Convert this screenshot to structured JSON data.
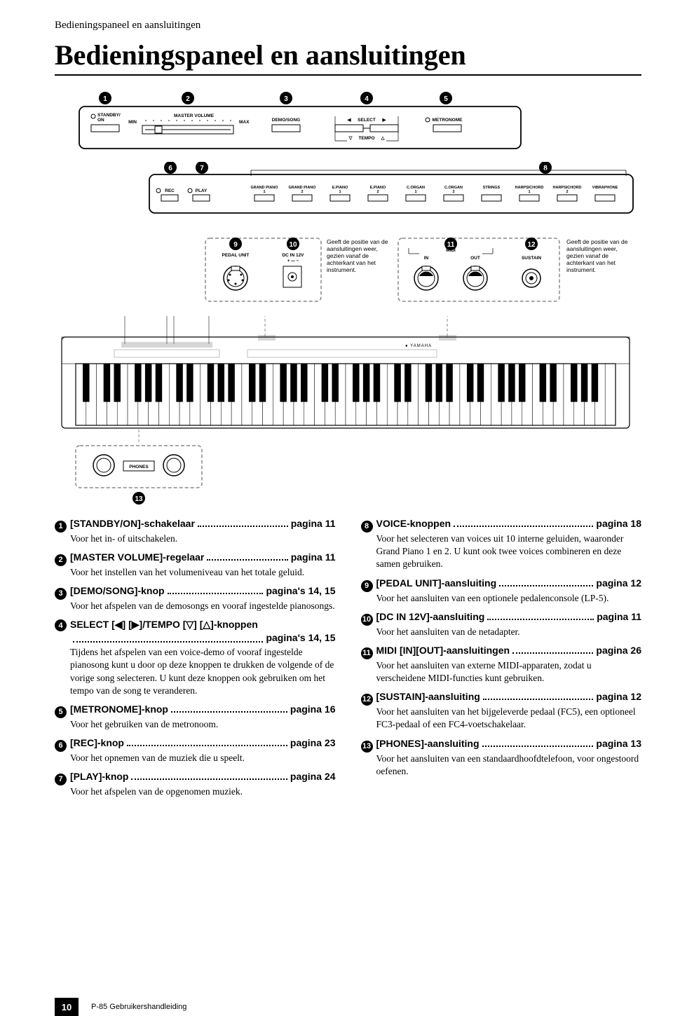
{
  "breadcrumb": "Bedieningspaneel en aansluitingen",
  "title": "Bedieningspaneel en aansluitingen",
  "top_panel": {
    "numbers": [
      "1",
      "2",
      "3",
      "4",
      "5"
    ],
    "items": [
      {
        "label_top": "STANDBY/",
        "label_bot": "ON",
        "led": true
      },
      {
        "slider": true,
        "left": "MIN",
        "right": "MAX",
        "title": "MASTER VOLUME"
      },
      {
        "label": "DEMO/SONG"
      },
      {
        "label": "SELECT",
        "arrows_lr": true,
        "sub_label": "TEMPO",
        "arrows_ud": true
      },
      {
        "label": "METRONOME",
        "led": true
      }
    ]
  },
  "mid_panel": {
    "numbers_left": [
      "6",
      "7"
    ],
    "number_right": "8",
    "rec": "REC",
    "play": "PLAY",
    "voices": [
      "GRAND PIANO 1",
      "GRAND PIANO 2",
      "E.PIANO 1",
      "E.PIANO 2",
      "C.ORGAN 1",
      "C.ORGAN 2",
      "STRINGS",
      "HARPSICHORD 1",
      "HARPSICHORD 2",
      "VIBRAPHONE"
    ]
  },
  "rear_left": {
    "n9": "9",
    "n10": "10",
    "pedal": "PEDAL UNIT",
    "dcin": "DC IN 12V",
    "note": "Geeft de positie van de aansluitingen weer, gezien vanaf de achterkant van het instrument."
  },
  "rear_right": {
    "n11": "11",
    "n12": "12",
    "midi": "MIDI",
    "in": "IN",
    "out": "OUT",
    "sustain": "SUSTAIN",
    "note": "Geeft de positie van de aansluitingen weer, gezien vanaf de achterkant van het instrument."
  },
  "phones": {
    "n13": "13",
    "label": "PHONES"
  },
  "entries_left": [
    {
      "n": "1",
      "label": "[STANDBY/ON]-schakelaar",
      "pg": "pagina 11",
      "body": "Voor het in- of uitschakelen."
    },
    {
      "n": "2",
      "label": "[MASTER VOLUME]-regelaar",
      "pg": "pagina 11",
      "body": "Voor het instellen van het volumeniveau van het totale geluid."
    },
    {
      "n": "3",
      "label": "[DEMO/SONG]-knop",
      "pg": "pagina's 14, 15",
      "body": "Voor het afspelen van de demosongs en vooraf ingestelde pianosongs."
    },
    {
      "n": "4",
      "label": "SELECT [◀] [▶]/TEMPO [▽] [△]-knoppen",
      "pg": "pagina's 14, 15",
      "wrap": true,
      "body": "Tijdens het afspelen van een voice-demo of vooraf ingestelde pianosong kunt u door op deze knoppen te drukken de volgende of de vorige song selecteren. U kunt deze knoppen ook gebruiken om het tempo van de song te veranderen."
    },
    {
      "n": "5",
      "label": "[METRONOME]-knop",
      "pg": "pagina 16",
      "body": "Voor het gebruiken van de metronoom."
    },
    {
      "n": "6",
      "label": "[REC]-knop",
      "pg": "pagina 23",
      "body": "Voor het opnemen van de muziek die u speelt."
    },
    {
      "n": "7",
      "label": "[PLAY]-knop",
      "pg": "pagina 24",
      "body": "Voor het afspelen van de opgenomen muziek."
    }
  ],
  "entries_right": [
    {
      "n": "8",
      "label": "VOICE-knoppen",
      "pg": "pagina 18",
      "body": "Voor het selecteren van voices uit 10 interne geluiden, waaronder Grand Piano 1 en 2. U kunt ook twee voices combineren en deze samen gebruiken."
    },
    {
      "n": "9",
      "label": "[PEDAL UNIT]-aansluiting",
      "pg": "pagina 12",
      "body": "Voor het aansluiten van een optionele pedalenconsole (LP-5)."
    },
    {
      "n": "10",
      "label": "[DC IN 12V]-aansluiting",
      "pg": "pagina 11",
      "body": "Voor het aansluiten van de netadapter."
    },
    {
      "n": "11",
      "label": "MIDI [IN][OUT]-aansluitingen",
      "pg": "pagina 26",
      "body": "Voor het aansluiten van externe MIDI-apparaten, zodat u verscheidene MIDI-functies kunt gebruiken."
    },
    {
      "n": "12",
      "label": "[SUSTAIN]-aansluiting",
      "pg": "pagina 12",
      "body": "Voor het aansluiten van het bijgeleverde pedaal (FC5), een optioneel FC3-pedaal of een FC4-voetschakelaar."
    },
    {
      "n": "13",
      "label": "[PHONES]-aansluiting",
      "pg": "pagina 13",
      "body": "Voor het aansluiten van een standaardhoofdtelefoon, voor ongestoord oefenen."
    }
  ],
  "footer": {
    "page": "10",
    "manual": "P-85 Gebruikershandleiding"
  },
  "colors": {
    "bg": "#ffffff",
    "fg": "#000000",
    "callout_stroke": "#8a8a8a"
  }
}
